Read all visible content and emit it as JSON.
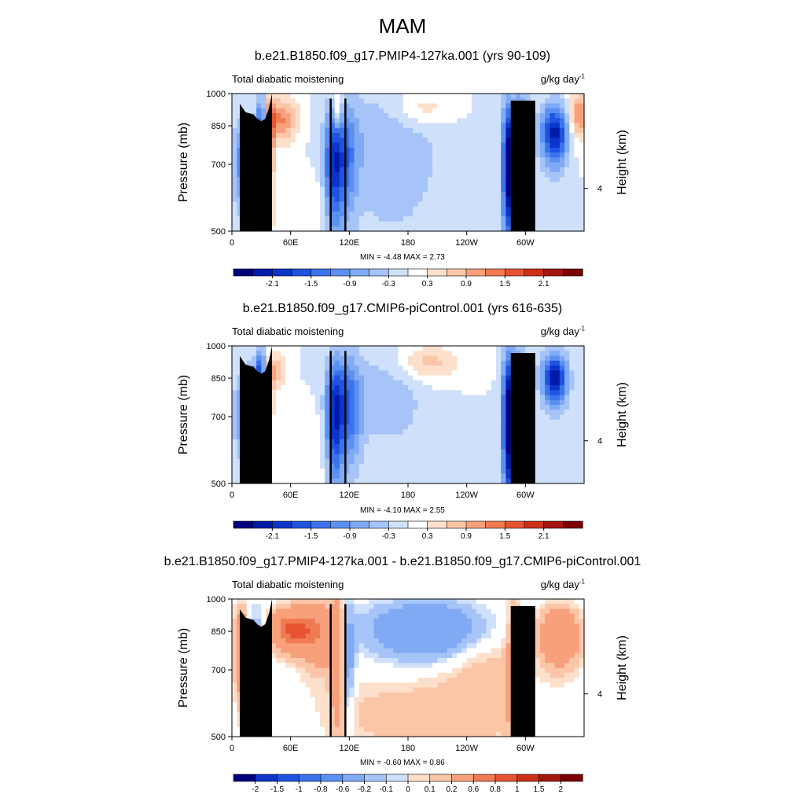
{
  "figure": {
    "title": "MAM"
  },
  "chart_data": [
    {
      "type": "heatmap",
      "title": "b.e21.B1850.f09_g17.PMIP4-127ka.001 (yrs 90-109)",
      "left_label": "Total diabatic moistening",
      "units": "g/kg day",
      "units_exp": "-1",
      "ylabel": "Pressure (mb)",
      "y2label": "Height (km)",
      "xticks": [
        "0",
        "60E",
        "120E",
        "180",
        "120W",
        "60W"
      ],
      "yticks": [
        "500",
        "700",
        "850",
        "1000"
      ],
      "y2ticks": [
        "4"
      ],
      "xlim": [
        0,
        360
      ],
      "ylim": [
        1000,
        500
      ],
      "min": "-4.48",
      "max": "2.73",
      "min_max_text": "MIN =  -4.48  MAX =   2.73",
      "colorbar_labels": [
        "-2.1",
        "-1.5",
        "-0.9",
        "-0.3",
        "0.3",
        "0.9",
        "1.5",
        "2.1"
      ],
      "features": [
        {
          "lon": 20,
          "p": 700,
          "v": -1.8,
          "sx": 12,
          "sp": 120
        },
        {
          "lon": 37,
          "p": 750,
          "v": 2.4,
          "sx": 4,
          "sp": 120
        },
        {
          "lon": 31,
          "p": 860,
          "v": -2.0,
          "sx": 4,
          "sp": 90
        },
        {
          "lon": 48,
          "p": 880,
          "v": 1.3,
          "sx": 14,
          "sp": 70
        },
        {
          "lon": 103,
          "p": 690,
          "v": -1.5,
          "sx": 6,
          "sp": 150
        },
        {
          "lon": 115,
          "p": 720,
          "v": -1.2,
          "sx": 9,
          "sp": 150
        },
        {
          "lon": 108,
          "p": 920,
          "v": 1.1,
          "sx": 3,
          "sp": 60
        },
        {
          "lon": 160,
          "p": 750,
          "v": -0.6,
          "sx": 40,
          "sp": 200
        },
        {
          "lon": 195,
          "p": 930,
          "v": 0.6,
          "sx": 22,
          "sp": 60
        },
        {
          "lon": 282,
          "p": 700,
          "v": -2.5,
          "sx": 4,
          "sp": 170
        },
        {
          "lon": 292,
          "p": 700,
          "v": -2.2,
          "sx": 5,
          "sp": 170
        },
        {
          "lon": 300,
          "p": 720,
          "v": -1.2,
          "sx": 5,
          "sp": 160
        },
        {
          "lon": 330,
          "p": 820,
          "v": -2.2,
          "sx": 10,
          "sp": 90
        },
        {
          "lon": 355,
          "p": 900,
          "v": 1.2,
          "sx": 8,
          "sp": 80
        },
        {
          "lon": 60,
          "p": 550,
          "v": 0.3,
          "sx": 40,
          "sp": 100
        }
      ]
    },
    {
      "type": "heatmap",
      "title": "b.e21.B1850.f09_g17.CMIP6-piControl.001 (yrs 616-635)",
      "left_label": "Total diabatic moistening",
      "units": "g/kg day",
      "units_exp": "-1",
      "ylabel": "Pressure (mb)",
      "y2label": "Height (km)",
      "xticks": [
        "0",
        "60E",
        "120E",
        "180",
        "120W",
        "60W"
      ],
      "yticks": [
        "500",
        "700",
        "850",
        "1000"
      ],
      "y2ticks": [
        "4"
      ],
      "xlim": [
        0,
        360
      ],
      "ylim": [
        1000,
        500
      ],
      "min": "-4.10",
      "max": "2.55",
      "min_max_text": "MIN =  -4.10  MAX =   2.55",
      "colorbar_labels": [
        "-2.1",
        "-1.5",
        "-0.9",
        "-0.3",
        "0.3",
        "0.9",
        "1.5",
        "2.1"
      ],
      "features": [
        {
          "lon": 20,
          "p": 700,
          "v": -1.6,
          "sx": 11,
          "sp": 120
        },
        {
          "lon": 36,
          "p": 740,
          "v": 2.3,
          "sx": 3.5,
          "sp": 110
        },
        {
          "lon": 30,
          "p": 860,
          "v": -1.8,
          "sx": 4,
          "sp": 90
        },
        {
          "lon": 45,
          "p": 880,
          "v": 0.9,
          "sx": 8,
          "sp": 60
        },
        {
          "lon": 104,
          "p": 690,
          "v": -1.7,
          "sx": 6,
          "sp": 160
        },
        {
          "lon": 118,
          "p": 730,
          "v": -1.4,
          "sx": 10,
          "sp": 150
        },
        {
          "lon": 160,
          "p": 780,
          "v": -0.5,
          "sx": 30,
          "sp": 150
        },
        {
          "lon": 200,
          "p": 920,
          "v": 0.8,
          "sx": 22,
          "sp": 60
        },
        {
          "lon": 282,
          "p": 690,
          "v": -2.5,
          "sx": 4,
          "sp": 180
        },
        {
          "lon": 291,
          "p": 700,
          "v": -2.0,
          "sx": 5,
          "sp": 170
        },
        {
          "lon": 298,
          "p": 680,
          "v": -1.0,
          "sx": 5,
          "sp": 160
        },
        {
          "lon": 330,
          "p": 850,
          "v": -2.3,
          "sx": 9,
          "sp": 80
        },
        {
          "lon": 60,
          "p": 560,
          "v": 0.3,
          "sx": 40,
          "sp": 100
        }
      ]
    },
    {
      "type": "heatmap",
      "title": "b.e21.B1850.f09_g17.PMIP4-127ka.001 - b.e21.B1850.f09_g17.CMIP6-piControl.001",
      "left_label": "Total diabatic moistening",
      "units": "g/kg day",
      "units_exp": "-1",
      "ylabel": "Pressure (mb)",
      "y2label": "Height (km)",
      "xticks": [
        "0",
        "60E",
        "120E",
        "180",
        "120W",
        "60W"
      ],
      "yticks": [
        "500",
        "700",
        "850",
        "1000"
      ],
      "y2ticks": [
        "4"
      ],
      "xlim": [
        0,
        360
      ],
      "ylim": [
        1000,
        500
      ],
      "min": "-0.60",
      "max": "0.86",
      "min_max_text": "MIN =  -0.60  MAX =   0.86",
      "colorbar_labels": [
        "-2",
        "-1.5",
        "-1",
        "-0.8",
        "-0.6",
        "-0.2",
        "-0.1",
        "0",
        "0.1",
        "0.2",
        "0.6",
        "0.8",
        "1",
        "1.5",
        "2"
      ],
      "features": [
        {
          "lon": 10,
          "p": 780,
          "v": 0.5,
          "sx": 5,
          "sp": 120
        },
        {
          "lon": 25,
          "p": 700,
          "v": -0.4,
          "sx": 5,
          "sp": 150
        },
        {
          "lon": 62,
          "p": 860,
          "v": 0.85,
          "sx": 15,
          "sp": 60
        },
        {
          "lon": 90,
          "p": 840,
          "v": 0.5,
          "sx": 14,
          "sp": 90
        },
        {
          "lon": 108,
          "p": 760,
          "v": 0.45,
          "sx": 5,
          "sp": 160
        },
        {
          "lon": 118,
          "p": 760,
          "v": -0.35,
          "sx": 5,
          "sp": 150
        },
        {
          "lon": 200,
          "p": 860,
          "v": -0.55,
          "sx": 40,
          "sp": 80
        },
        {
          "lon": 255,
          "p": 700,
          "v": 0.15,
          "sx": 30,
          "sp": 150
        },
        {
          "lon": 290,
          "p": 720,
          "v": 0.4,
          "sx": 6,
          "sp": 170
        },
        {
          "lon": 300,
          "p": 700,
          "v": -0.4,
          "sx": 4,
          "sp": 150
        },
        {
          "lon": 335,
          "p": 830,
          "v": 0.6,
          "sx": 14,
          "sp": 80
        },
        {
          "lon": 180,
          "p": 560,
          "v": 0.15,
          "sx": 60,
          "sp": 80
        }
      ]
    }
  ],
  "palette": [
    "#00007f",
    "#001aaa",
    "#0d35c9",
    "#1f53e0",
    "#3a73eb",
    "#5b90f2",
    "#80aaf4",
    "#a6c4f8",
    "#cfe0fa",
    "#ffffff",
    "#fde0cc",
    "#fbc6a8",
    "#f7a07b",
    "#f07a52",
    "#e65330",
    "#cc3018",
    "#a41610",
    "#7a0000"
  ],
  "terrain_color": "#000000"
}
